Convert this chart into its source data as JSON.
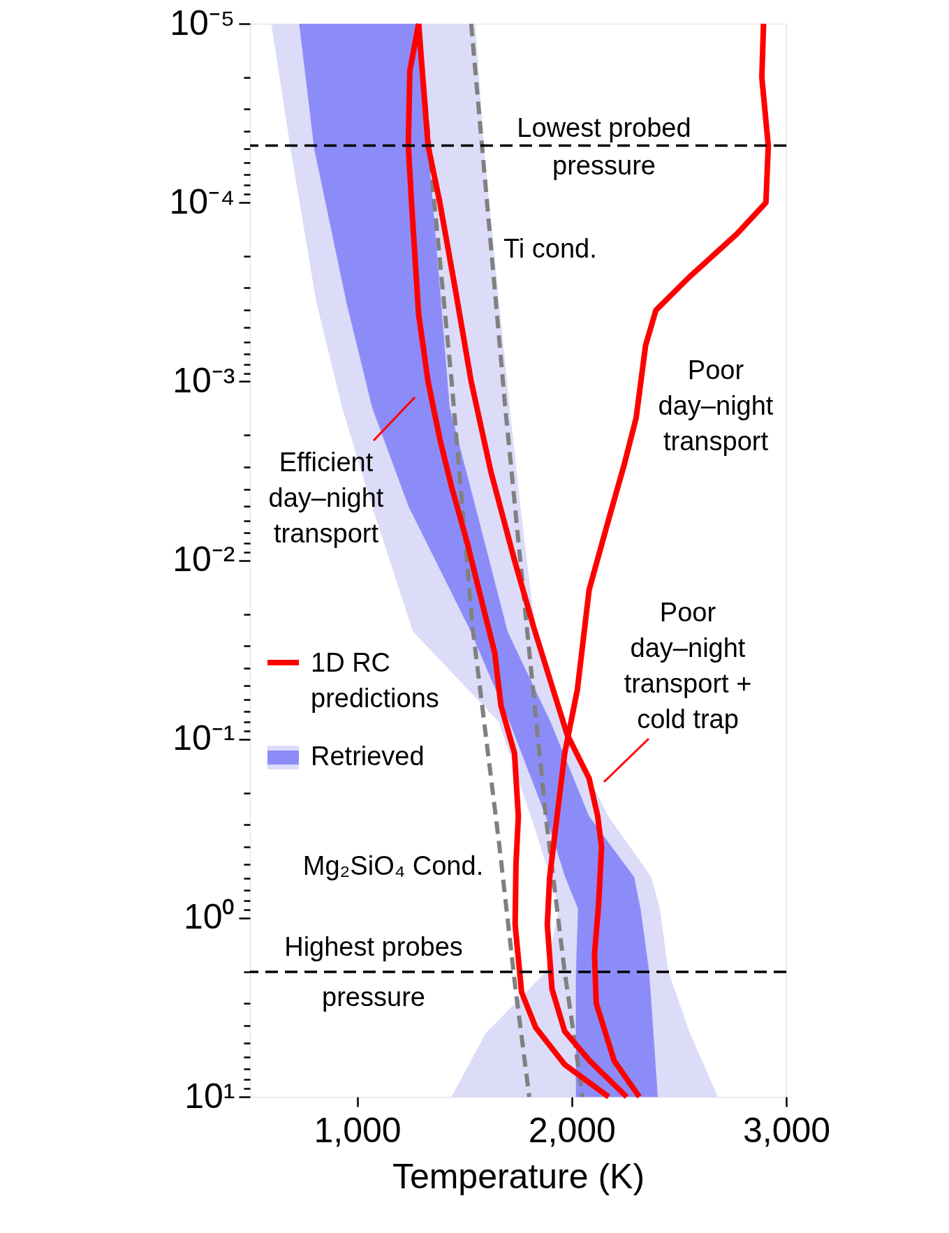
{
  "chart_data": {
    "type": "line",
    "xlabel": "Temperature (K)",
    "xlim": [
      500,
      3000
    ],
    "xticks": [
      {
        "value": 1000,
        "label": "1,000"
      },
      {
        "value": 2000,
        "label": "2,000"
      },
      {
        "value": 3000,
        "label": "3,000"
      }
    ],
    "ylim": [
      10,
      1e-05
    ],
    "log": "y",
    "grid": false,
    "legend": "left",
    "yticks": [
      {
        "value": 1e-05,
        "label": "10⁻⁵"
      },
      {
        "value": 0.0001,
        "label": "10⁻⁴"
      },
      {
        "value": 0.001,
        "label": "10⁻³"
      },
      {
        "value": 0.01,
        "label": "10⁻²"
      },
      {
        "value": 0.1,
        "label": "10⁻¹"
      },
      {
        "value": 1,
        "label": "10⁰"
      },
      {
        "value": 10,
        "label": "10¹"
      },
      {
        "value": 2e-05,
        "label": null
      },
      {
        "value": 3e-05,
        "label": null
      },
      {
        "value": 4e-05,
        "label": null
      },
      {
        "value": 5e-05,
        "label": null
      },
      {
        "value": 6e-05,
        "label": null
      },
      {
        "value": 7e-05,
        "label": null
      },
      {
        "value": 8e-05,
        "label": null
      },
      {
        "value": 9e-05,
        "label": null
      },
      {
        "value": 0.0002,
        "label": null
      },
      {
        "value": 0.0003,
        "label": null
      },
      {
        "value": 0.0004,
        "label": null
      },
      {
        "value": 0.0005,
        "label": null
      },
      {
        "value": 0.0006,
        "label": null
      },
      {
        "value": 0.0007,
        "label": null
      },
      {
        "value": 0.0008,
        "label": null
      },
      {
        "value": 0.0009,
        "label": null
      },
      {
        "value": 0.002,
        "label": null
      },
      {
        "value": 0.003,
        "label": null
      },
      {
        "value": 0.004,
        "label": null
      },
      {
        "value": 0.005,
        "label": null
      },
      {
        "value": 0.006,
        "label": null
      },
      {
        "value": 0.007,
        "label": null
      },
      {
        "value": 0.008,
        "label": null
      },
      {
        "value": 0.009,
        "label": null
      },
      {
        "value": 0.02,
        "label": null
      },
      {
        "value": 0.03,
        "label": null
      },
      {
        "value": 0.04,
        "label": null
      },
      {
        "value": 0.05,
        "label": null
      },
      {
        "value": 0.06,
        "label": null
      },
      {
        "value": 0.07,
        "label": null
      },
      {
        "value": 0.08,
        "label": null
      },
      {
        "value": 0.09,
        "label": null
      },
      {
        "value": 0.2,
        "label": null
      },
      {
        "value": 0.3,
        "label": null
      },
      {
        "value": 0.4,
        "label": null
      },
      {
        "value": 0.5,
        "label": null
      },
      {
        "value": 0.6,
        "label": null
      },
      {
        "value": 0.7,
        "label": null
      },
      {
        "value": 0.8,
        "label": null
      },
      {
        "value": 0.9,
        "label": null
      },
      {
        "value": 2,
        "label": null
      },
      {
        "value": 3,
        "label": null
      },
      {
        "value": 4,
        "label": null
      },
      {
        "value": 5,
        "label": null
      },
      {
        "value": 6,
        "label": null
      },
      {
        "value": 7,
        "label": null
      },
      {
        "value": 8,
        "label": null
      },
      {
        "value": 9,
        "label": null
      }
    ],
    "series": [
      {
        "type": "area",
        "color": "#dcdcf8",
        "x": [
          600,
          690,
          810,
          930,
          1070,
          1260,
          1660,
          1810,
          1900,
          1940,
          1880,
          1600,
          1440,
          2680,
          2550,
          2450,
          2410,
          2370,
          2170,
          1950,
          1830,
          1760,
          1710,
          1660,
          1590,
          1550
        ],
        "values": [
          1e-05,
          5e-05,
          0.00036,
          0.0014,
          0.005,
          0.025,
          0.08,
          0.27,
          0.59,
          0.89,
          2.0,
          4.4,
          10,
          10,
          4.4,
          2.0,
          0.89,
          0.59,
          0.27,
          0.08,
          0.025,
          0.005,
          0.0014,
          0.00036,
          5e-05,
          1e-05
        ]
      },
      {
        "type": "area",
        "name": "Retrieved",
        "color": "#8c8cf8",
        "x": [
          730,
          800,
          950,
          1070,
          1240,
          1530,
          1710,
          1880,
          1970,
          2030,
          2020,
          2020,
          2020,
          2400,
          2380,
          2360,
          2320,
          2290,
          2080,
          1900,
          1700,
          1550,
          1430,
          1390,
          1330,
          1300
        ],
        "values": [
          1e-05,
          5e-05,
          0.00036,
          0.0014,
          0.005,
          0.025,
          0.08,
          0.27,
          0.59,
          0.89,
          2.0,
          4.4,
          10,
          10,
          4.4,
          2.0,
          0.89,
          0.59,
          0.27,
          0.08,
          0.025,
          0.005,
          0.0014,
          0.00036,
          5e-05,
          1e-05
        ]
      },
      {
        "type": "line",
        "color": "#808080",
        "line_style": "dashed",
        "x": [
          1531,
          1689,
          1791,
          1879,
          1967,
          2051
        ],
        "values": [
          1e-05,
          0.00136,
          0.024,
          0.27,
          2.0,
          10
        ]
      },
      {
        "type": "line",
        "color": "#808080",
        "line_style": "dashed",
        "x": [
          1286,
          1359,
          1440,
          1538,
          1663,
          1736,
          1802
        ],
        "values": [
          1e-05,
          0.0001,
          0.001,
          0.024,
          0.4,
          2.4,
          10
        ]
      },
      {
        "type": "line",
        "name": "1D RC predictions",
        "color": "#ff0000",
        "x": [
          1286,
          1245,
          1238,
          1253,
          1286,
          1330,
          1385,
          1440,
          1513,
          1575,
          1641,
          1670,
          1733,
          1751,
          1740,
          1736,
          1766,
          1832,
          1967,
          2172
        ],
        "values": [
          1e-05,
          1.84e-05,
          4.8e-05,
          0.0001,
          0.00042,
          0.001,
          0.0021,
          0.0039,
          0.008,
          0.016,
          0.033,
          0.065,
          0.12,
          0.27,
          0.5,
          1.09,
          2.6,
          4.1,
          6.6,
          10
        ]
      },
      {
        "type": "line",
        "color": "#ff0000",
        "x": [
          1286,
          1330,
          1385,
          1458,
          1531,
          1623,
          1733,
          1824,
          1978,
          2081,
          2121,
          2139,
          2125,
          2106,
          2114,
          2198,
          2315
        ],
        "values": [
          1e-05,
          4.8e-05,
          0.0001,
          0.00031,
          0.001,
          0.0032,
          0.01,
          0.024,
          0.094,
          0.166,
          0.27,
          0.4,
          0.84,
          1.6,
          3.0,
          6.3,
          10
        ]
      },
      {
        "type": "line",
        "color": "#ff0000",
        "x": [
          2894,
          2886,
          2916,
          2905,
          2769,
          2549,
          2392,
          2344,
          2300,
          2245,
          2172,
          2081,
          2026,
          1967,
          1897,
          1886,
          1908,
          1967,
          2084,
          2256
        ],
        "values": [
          1e-05,
          2e-05,
          4.8e-05,
          0.0001,
          0.00015,
          0.00026,
          0.0004,
          0.00063,
          0.0016,
          0.0029,
          0.0059,
          0.0146,
          0.053,
          0.12,
          0.59,
          1.09,
          2.5,
          4.3,
          6.3,
          10
        ]
      }
    ],
    "ref_lines": [
      {
        "axis": "y",
        "value": 4.8e-05,
        "label": "Lowest probed pressure",
        "color": "#000000",
        "line_style": "dashed"
      },
      {
        "axis": "y",
        "value": 2.0,
        "label": "Highest probes pressure",
        "color": "#000000",
        "line_style": "dashed"
      }
    ],
    "annotations": [
      "Ti cond.",
      "Mg₂SiO₄ Cond.",
      "Efficient day–night transport",
      "Poor day–night transport",
      "Poor day–night transport + cold trap"
    ]
  }
}
